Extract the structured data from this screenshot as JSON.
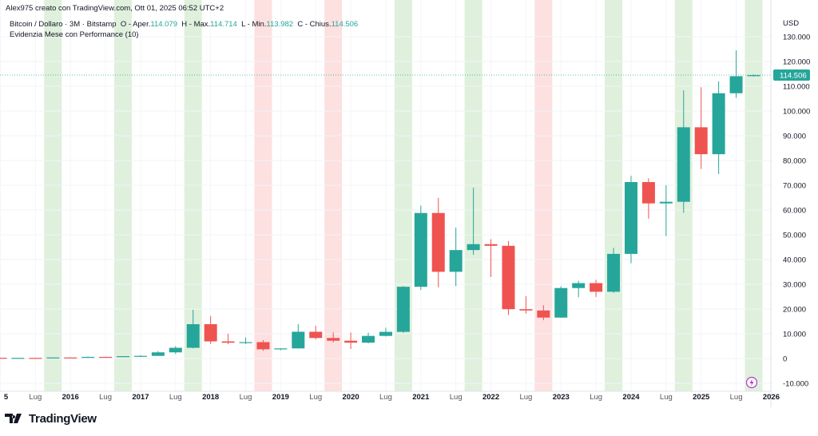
{
  "header": {
    "credit": "Alex975 creato con TradingView.com, Ott 01, 2025 06:52 UTC+2",
    "symbol": "Bitcoin / Dollaro · 3M · Bitstamp",
    "o_label": "O - Aper.",
    "o": "114.079",
    "h_label": "H - Max.",
    "h": "114.714",
    "l_label": "L - Min.",
    "l": "113.982",
    "c_label": "C - Chius.",
    "c": "114.506",
    "indicator": "Evidenzia Mese con Performance (10)"
  },
  "logo": {
    "text": "TradingView"
  },
  "chart_data": {
    "type": "candlestick",
    "currency": "USD",
    "ylim": [
      -13000,
      137000
    ],
    "y_ticks": [
      {
        "v": 130000,
        "t": "130.000"
      },
      {
        "v": 120000,
        "t": "120.000"
      },
      {
        "v": 110000,
        "t": "110.000"
      },
      {
        "v": 100000,
        "t": "100.000"
      },
      {
        "v": 90000,
        "t": "90.000"
      },
      {
        "v": 80000,
        "t": "80.000"
      },
      {
        "v": 70000,
        "t": "70.000"
      },
      {
        "v": 60000,
        "t": "60.000"
      },
      {
        "v": 50000,
        "t": "50.000"
      },
      {
        "v": 40000,
        "t": "40.000"
      },
      {
        "v": 30000,
        "t": "30.000"
      },
      {
        "v": 20000,
        "t": "20.000"
      },
      {
        "v": 10000,
        "t": "10.000"
      },
      {
        "v": 0,
        "t": "0"
      },
      {
        "v": -10000,
        "t": "-10.000"
      }
    ],
    "x_ticks": [
      {
        "q": "2015Q1",
        "t": "5"
      },
      {
        "q": "2015Q3",
        "t": "Lug"
      },
      {
        "q": "2016Q1",
        "t": "2016"
      },
      {
        "q": "2016Q3",
        "t": "Lug"
      },
      {
        "q": "2017Q1",
        "t": "2017"
      },
      {
        "q": "2017Q3",
        "t": "Lug"
      },
      {
        "q": "2018Q1",
        "t": "2018"
      },
      {
        "q": "2018Q3",
        "t": "Lug"
      },
      {
        "q": "2019Q1",
        "t": "2019"
      },
      {
        "q": "2019Q3",
        "t": "Lug"
      },
      {
        "q": "2020Q1",
        "t": "2020"
      },
      {
        "q": "2020Q3",
        "t": "Lug"
      },
      {
        "q": "2021Q1",
        "t": "2021"
      },
      {
        "q": "2021Q3",
        "t": "Lug"
      },
      {
        "q": "2022Q1",
        "t": "2022"
      },
      {
        "q": "2022Q3",
        "t": "Lug"
      },
      {
        "q": "2023Q1",
        "t": "2023"
      },
      {
        "q": "2023Q3",
        "t": "Lug"
      },
      {
        "q": "2024Q1",
        "t": "2024"
      },
      {
        "q": "2024Q3",
        "t": "Lug"
      },
      {
        "q": "2025Q1",
        "t": "2025"
      },
      {
        "q": "2025Q3",
        "t": "Lug"
      },
      {
        "q": "2026Q1",
        "t": "2026"
      }
    ],
    "last_price": {
      "value": 114506,
      "label": "114.506"
    },
    "highlight_quarters": [
      {
        "q": "2015Q4",
        "perf": "up"
      },
      {
        "q": "2016Q4",
        "perf": "up"
      },
      {
        "q": "2017Q4",
        "perf": "up"
      },
      {
        "q": "2018Q4",
        "perf": "down"
      },
      {
        "q": "2019Q4",
        "perf": "down"
      },
      {
        "q": "2020Q4",
        "perf": "up"
      },
      {
        "q": "2021Q4",
        "perf": "up"
      },
      {
        "q": "2022Q4",
        "perf": "down"
      },
      {
        "q": "2023Q4",
        "perf": "up"
      },
      {
        "q": "2024Q4",
        "perf": "up"
      },
      {
        "q": "2025Q4",
        "perf": "up"
      }
    ],
    "colors": {
      "up": "#26a69a",
      "down": "#ef5350",
      "band_up": "#dff0dc",
      "band_down": "#fde0e0"
    },
    "candles": [
      [
        "2015Q1",
        318,
        320,
        166,
        244
      ],
      [
        "2015Q2",
        244,
        265,
        200,
        263
      ],
      [
        "2015Q3",
        263,
        315,
        198,
        236
      ],
      [
        "2015Q4",
        236,
        502,
        236,
        430
      ],
      [
        "2016Q1",
        430,
        465,
        350,
        416
      ],
      [
        "2016Q2",
        416,
        780,
        415,
        673
      ],
      [
        "2016Q3",
        673,
        700,
        470,
        609
      ],
      [
        "2016Q4",
        609,
        980,
        605,
        964
      ],
      [
        "2017Q1",
        964,
        1350,
        890,
        1080
      ],
      [
        "2017Q2",
        1080,
        2990,
        1060,
        2500
      ],
      [
        "2017Q3",
        2500,
        4980,
        1840,
        4340
      ],
      [
        "2017Q4",
        4340,
        19700,
        4130,
        13880
      ],
      [
        "2018Q1",
        13880,
        17200,
        5920,
        6930
      ],
      [
        "2018Q2",
        6930,
        9990,
        5800,
        6390
      ],
      [
        "2018Q3",
        6390,
        8500,
        5860,
        6630
      ],
      [
        "2018Q4",
        6630,
        7470,
        3120,
        3740
      ],
      [
        "2019Q1",
        3740,
        4110,
        3350,
        4100
      ],
      [
        "2019Q2",
        4100,
        13880,
        4070,
        10820
      ],
      [
        "2019Q3",
        10820,
        13200,
        7710,
        8300
      ],
      [
        "2019Q4",
        8300,
        10540,
        6510,
        7200
      ],
      [
        "2020Q1",
        7200,
        10500,
        3850,
        6420
      ],
      [
        "2020Q2",
        6420,
        10430,
        6150,
        9140
      ],
      [
        "2020Q3",
        9140,
        12470,
        8900,
        10780
      ],
      [
        "2020Q4",
        10780,
        29300,
        10370,
        28990
      ],
      [
        "2021Q1",
        28990,
        61800,
        27730,
        58800
      ],
      [
        "2021Q2",
        58800,
        64900,
        28800,
        35040
      ],
      [
        "2021Q3",
        35040,
        52900,
        29280,
        43820
      ],
      [
        "2021Q4",
        43820,
        69000,
        41900,
        46210
      ],
      [
        "2022Q1",
        46210,
        48200,
        32950,
        45540
      ],
      [
        "2022Q2",
        45540,
        47450,
        17570,
        19940
      ],
      [
        "2022Q3",
        19940,
        25200,
        18150,
        19420
      ],
      [
        "2022Q4",
        19420,
        21480,
        15480,
        16540
      ],
      [
        "2023Q1",
        16540,
        29200,
        16490,
        28480
      ],
      [
        "2023Q2",
        28480,
        31400,
        24750,
        30470
      ],
      [
        "2023Q3",
        30470,
        31800,
        24900,
        26970
      ],
      [
        "2023Q4",
        26970,
        44700,
        26540,
        42280
      ],
      [
        "2024Q1",
        42280,
        73800,
        38500,
        71290
      ],
      [
        "2024Q2",
        71290,
        72800,
        56500,
        62680
      ],
      [
        "2024Q3",
        62680,
        70000,
        49500,
        63330
      ],
      [
        "2024Q4",
        63330,
        108300,
        58900,
        93430
      ],
      [
        "2025Q1",
        93430,
        109600,
        76600,
        82550
      ],
      [
        "2025Q2",
        82550,
        112000,
        74500,
        107170
      ],
      [
        "2025Q3",
        107170,
        124500,
        105300,
        114060
      ],
      [
        "2025Q4",
        114079,
        114714,
        113982,
        114506
      ]
    ]
  }
}
